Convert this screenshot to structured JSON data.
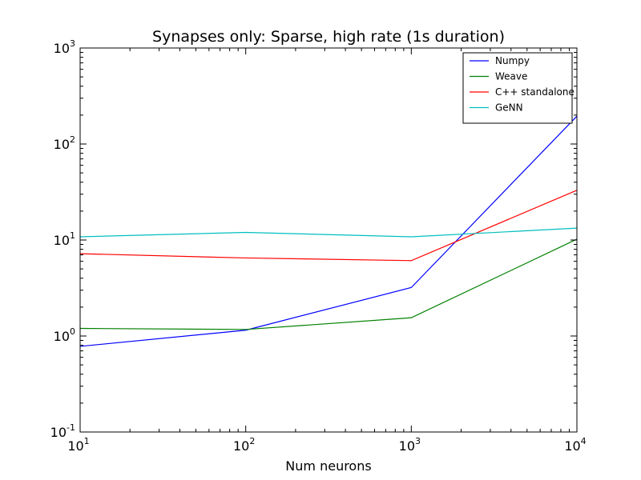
{
  "chart_data": {
    "type": "line",
    "title": "Synapses only: Sparse, high rate (1s duration)",
    "xlabel": "Num neurons",
    "ylabel": "",
    "xscale": "log",
    "yscale": "log",
    "xlim": [
      10,
      10000
    ],
    "ylim": [
      0.1,
      1000
    ],
    "x": [
      10,
      100,
      1000,
      10000
    ],
    "x_ticks": [
      {
        "value": 10,
        "base": "10",
        "exp": "1"
      },
      {
        "value": 100,
        "base": "10",
        "exp": "2"
      },
      {
        "value": 1000,
        "base": "10",
        "exp": "3"
      },
      {
        "value": 10000,
        "base": "10",
        "exp": "4"
      }
    ],
    "y_ticks": [
      {
        "value": 0.1,
        "base": "10",
        "exp": "-1"
      },
      {
        "value": 1,
        "base": "10",
        "exp": "0"
      },
      {
        "value": 10,
        "base": "10",
        "exp": "1"
      },
      {
        "value": 100,
        "base": "10",
        "exp": "2"
      },
      {
        "value": 1000,
        "base": "10",
        "exp": "3"
      }
    ],
    "grid": false,
    "legend_position": "top-right",
    "series": [
      {
        "name": "Numpy",
        "color": "#0000ff",
        "values": [
          0.78,
          1.15,
          3.2,
          195
        ]
      },
      {
        "name": "Weave",
        "color": "#008000",
        "values": [
          1.2,
          1.17,
          1.55,
          10.2
        ]
      },
      {
        "name": "C++ standalone",
        "color": "#ff0000",
        "values": [
          7.2,
          6.5,
          6.1,
          33
        ]
      },
      {
        "name": "GeNN",
        "color": "#00bfbf",
        "values": [
          10.8,
          12,
          10.8,
          13.3
        ]
      }
    ]
  }
}
